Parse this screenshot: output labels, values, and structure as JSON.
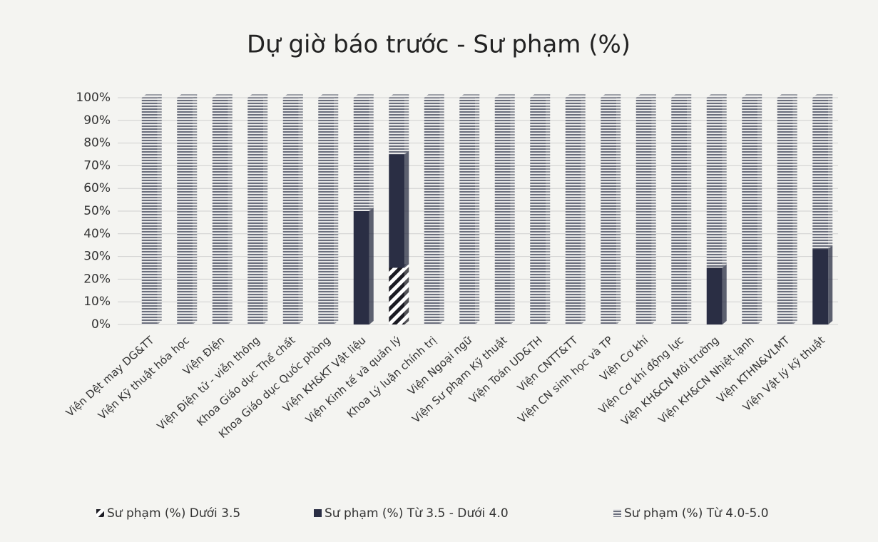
{
  "chart_data": {
    "type": "stacked_bar",
    "title": "Dự giờ báo trước - Sư phạm (%)",
    "categories": [
      "Viện Dệt may DG&TT",
      "Viện Kỹ thuật hóa học",
      "Viện Điện",
      "Viện Điện tử - viễn thông",
      "Khoa Giáo dục Thể chất",
      "Khoa Giáo dục Quốc phòng",
      "Viện KH&KT Vật liệu",
      "Viện Kinh tế và quản lý",
      "Khoa Lý luận chính trị",
      "Viện Ngoại ngữ",
      "Viện Sư phạm Kỹ thuật",
      "Viện Toán UD&TH",
      "Viện CNTT&TT",
      "Viện CN sinh học và TP",
      "Viện Cơ khí",
      "Viện Cơ khí động lực",
      "Viện KH&CN Môi trường",
      "Viện KH&CN Nhiệt lạnh",
      "Viện KTHN&VLMT",
      "Viện Vật lý kỹ thuật"
    ],
    "series": [
      {
        "name": "Sư phạm (%) Dưới 3.5",
        "color": "#1c1c24",
        "values": [
          0,
          0,
          0,
          0,
          0,
          0,
          0,
          25,
          0,
          0,
          0,
          0,
          0,
          0,
          0,
          0,
          0,
          0,
          0,
          0
        ]
      },
      {
        "name": "Sư phạm (%) Từ 3.5 - Dưới 4.0",
        "color": "#2a2e44",
        "values": [
          0,
          0,
          0,
          0,
          0,
          0,
          50,
          50,
          0,
          0,
          0,
          0,
          0,
          0,
          0,
          0,
          25,
          0,
          0,
          33.3
        ]
      },
      {
        "name": "Sư phạm (%) Từ 4.0-5.0",
        "color": "#6a6e7c",
        "values": [
          100,
          100,
          100,
          100,
          100,
          100,
          50,
          25,
          100,
          100,
          100,
          100,
          100,
          100,
          100,
          100,
          75,
          100,
          100,
          66.7
        ]
      }
    ],
    "ylim": [
      0,
      100
    ],
    "yticks": [
      {
        "value": 0,
        "label": "0%"
      },
      {
        "value": 10,
        "label": "10%"
      },
      {
        "value": 20,
        "label": "20%"
      },
      {
        "value": 30,
        "label": "30%"
      },
      {
        "value": 40,
        "label": "40%"
      },
      {
        "value": 50,
        "label": "50%"
      },
      {
        "value": 60,
        "label": "60%"
      },
      {
        "value": 70,
        "label": "70%"
      },
      {
        "value": 80,
        "label": "80%"
      },
      {
        "value": 90,
        "label": "90%"
      },
      {
        "value": 100,
        "label": "100%"
      }
    ],
    "grid": true,
    "legend": "bottom"
  }
}
